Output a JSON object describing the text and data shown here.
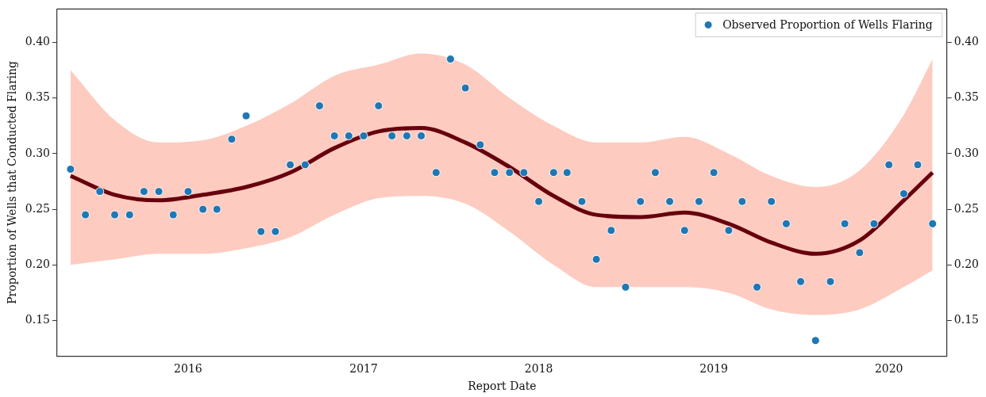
{
  "chart_data": {
    "type": "scatter",
    "xlabel": "Report Date",
    "ylabel": "Proportion of Wells that Conducted Flaring",
    "xlim": [
      "2015-04-03",
      "2020-05-01"
    ],
    "xticks": [
      "2016",
      "2017",
      "2018",
      "2019",
      "2020"
    ],
    "ylim": [
      0.118,
      0.43
    ],
    "yticks": [
      {
        "value": 0.15,
        "label": "0.15"
      },
      {
        "value": 0.2,
        "label": "0.20"
      },
      {
        "value": 0.25,
        "label": "0.25"
      },
      {
        "value": 0.3,
        "label": "0.30"
      },
      {
        "value": 0.35,
        "label": "0.35"
      },
      {
        "value": 0.4,
        "label": "0.40"
      }
    ],
    "y2lim": [
      0.118,
      0.43
    ],
    "y2ticks": [
      {
        "value": 0.15,
        "label": "0.15"
      },
      {
        "value": 0.2,
        "label": "0.20"
      },
      {
        "value": 0.25,
        "label": "0.25"
      },
      {
        "value": 0.3,
        "label": "0.30"
      },
      {
        "value": 0.35,
        "label": "0.35"
      },
      {
        "value": 0.4,
        "label": "0.40"
      }
    ],
    "grid": false,
    "legend": "top right",
    "marker": "circle",
    "series": [
      {
        "type": "line",
        "color": "#67000d",
        "marker": "none",
        "x": [
          "2015-05",
          "2015-08",
          "2015-11",
          "2016-02",
          "2016-05",
          "2016-08",
          "2016-11",
          "2017-02",
          "2017-05",
          "2017-08",
          "2017-11",
          "2018-02",
          "2018-05",
          "2018-08",
          "2018-11",
          "2019-02",
          "2019-05",
          "2019-08",
          "2019-11",
          "2020-02",
          "2020-04"
        ],
        "values": [
          0.28,
          0.263,
          0.258,
          0.263,
          0.27,
          0.283,
          0.305,
          0.32,
          0.323,
          0.31,
          0.288,
          0.262,
          0.245,
          0.243,
          0.247,
          0.237,
          0.22,
          0.21,
          0.222,
          0.258,
          0.283
        ],
        "lower": [
          0.2,
          0.205,
          0.21,
          0.21,
          0.215,
          0.225,
          0.245,
          0.26,
          0.262,
          0.255,
          0.23,
          0.2,
          0.18,
          0.18,
          0.18,
          0.175,
          0.16,
          0.155,
          0.16,
          0.18,
          0.195
        ],
        "upper": [
          0.375,
          0.33,
          0.31,
          0.312,
          0.325,
          0.345,
          0.37,
          0.38,
          0.39,
          0.38,
          0.35,
          0.325,
          0.31,
          0.31,
          0.315,
          0.3,
          0.28,
          0.27,
          0.285,
          0.335,
          0.385
        ]
      },
      {
        "name": "Observed Proportion of Wells Flaring",
        "color": "#1f77b4",
        "x": [
          "2015-05",
          "2015-06",
          "2015-07",
          "2015-08",
          "2015-09",
          "2015-10",
          "2015-11",
          "2015-12",
          "2016-01",
          "2016-02",
          "2016-03",
          "2016-04",
          "2016-05",
          "2016-06",
          "2016-07",
          "2016-08",
          "2016-09",
          "2016-10",
          "2016-11",
          "2016-12",
          "2017-01",
          "2017-02",
          "2017-03",
          "2017-04",
          "2017-05",
          "2017-06",
          "2017-07",
          "2017-08",
          "2017-09",
          "2017-10",
          "2017-11",
          "2017-12",
          "2018-01",
          "2018-02",
          "2018-03",
          "2018-04",
          "2018-05",
          "2018-06",
          "2018-07",
          "2018-08",
          "2018-09",
          "2018-10",
          "2018-11",
          "2018-12",
          "2019-01",
          "2019-02",
          "2019-03",
          "2019-04",
          "2019-05",
          "2019-06",
          "2019-07",
          "2019-08",
          "2019-09",
          "2019-10",
          "2019-11",
          "2019-12",
          "2020-01",
          "2020-02",
          "2020-03",
          "2020-04"
        ],
        "values": [
          0.286,
          0.245,
          0.266,
          0.245,
          0.245,
          0.266,
          0.266,
          0.245,
          0.266,
          0.25,
          0.25,
          0.313,
          0.334,
          0.23,
          0.23,
          0.29,
          0.29,
          0.343,
          0.316,
          0.316,
          0.316,
          0.343,
          0.316,
          0.316,
          0.316,
          0.283,
          0.385,
          0.359,
          0.308,
          0.283,
          0.283,
          0.283,
          0.257,
          0.283,
          0.283,
          0.257,
          0.205,
          0.231,
          0.18,
          0.257,
          0.283,
          0.257,
          0.231,
          0.257,
          0.283,
          0.231,
          0.257,
          0.18,
          0.257,
          0.237,
          0.185,
          0.132,
          0.185,
          0.237,
          0.211,
          0.237,
          0.29,
          0.264,
          0.29,
          0.237
        ]
      }
    ]
  }
}
